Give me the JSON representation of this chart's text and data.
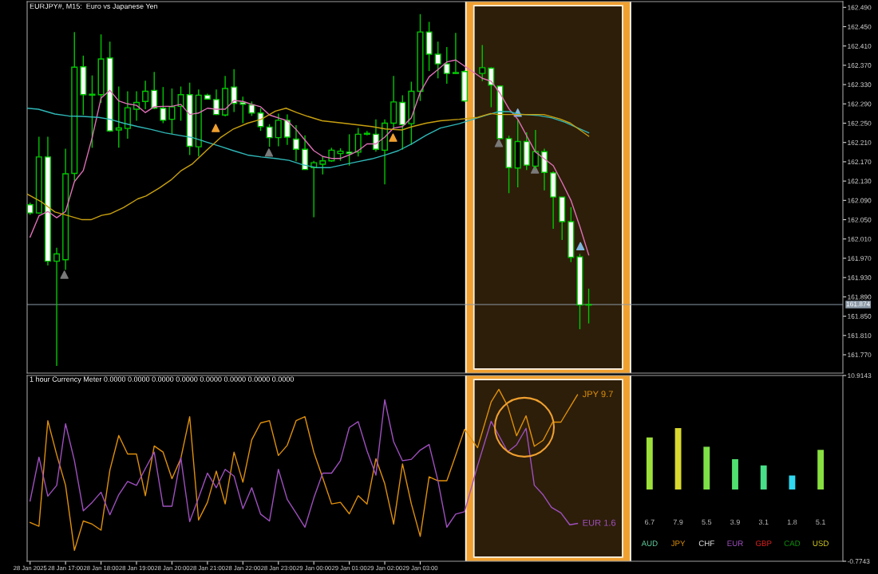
{
  "chart_data": [
    {
      "type": "candlestick",
      "title": "EURJPY#, M15:  Euro vs Japanese Yen",
      "x": [
        "2025-01-28T16:00",
        "2025-01-28T16:15",
        "2025-01-28T16:30",
        "2025-01-28T16:45",
        "2025-01-28T17:00",
        "2025-01-28T17:15",
        "2025-01-28T17:30",
        "2025-01-28T17:45",
        "2025-01-28T18:00",
        "2025-01-28T18:15",
        "2025-01-28T18:30",
        "2025-01-28T18:45",
        "2025-01-28T19:00",
        "2025-01-28T19:15",
        "2025-01-28T19:30",
        "2025-01-28T19:45",
        "2025-01-28T20:00",
        "2025-01-28T20:15",
        "2025-01-28T20:30",
        "2025-01-28T20:45",
        "2025-01-28T21:00",
        "2025-01-28T21:15",
        "2025-01-28T21:30",
        "2025-01-28T21:45",
        "2025-01-28T22:00",
        "2025-01-28T22:15",
        "2025-01-28T22:30",
        "2025-01-28T22:45",
        "2025-01-28T23:00",
        "2025-01-28T23:15",
        "2025-01-28T23:30",
        "2025-01-28T23:45",
        "2025-01-29T00:00",
        "2025-01-29T00:15",
        "2025-01-29T00:30",
        "2025-01-29T00:45",
        "2025-01-29T01:00",
        "2025-01-29T01:15",
        "2025-01-29T01:30",
        "2025-01-29T01:45",
        "2025-01-29T02:00",
        "2025-01-29T02:15",
        "2025-01-29T02:30",
        "2025-01-29T02:45",
        "2025-01-29T03:00",
        "2025-01-29T03:15",
        "2025-01-29T03:30",
        "2025-01-29T03:45",
        "2025-01-29T04:00",
        "2025-01-29T04:15",
        "2025-01-29T04:45",
        "2025-01-29T05:00",
        "2025-01-29T05:15",
        "2025-01-29T05:30",
        "2025-01-29T05:45",
        "2025-01-29T06:00",
        "2025-01-29T06:15",
        "2025-01-29T06:30",
        "2025-01-29T06:45",
        "2025-01-29T07:00",
        "2025-01-29T07:15",
        "2025-01-29T07:30",
        "2025-01-29T07:45"
      ],
      "ohlc": [
        [
          162.081,
          162.085,
          162.06,
          162.064
        ],
        [
          162.064,
          162.222,
          162.062,
          162.18
        ],
        [
          162.18,
          162.222,
          161.955,
          161.964
        ],
        [
          161.964,
          161.992,
          161.747,
          161.979
        ],
        [
          161.967,
          162.197,
          161.946,
          162.145
        ],
        [
          162.146,
          162.439,
          162.131,
          162.366
        ],
        [
          162.367,
          162.39,
          162.267,
          162.309
        ],
        [
          162.308,
          162.349,
          162.199,
          162.31
        ],
        [
          162.309,
          162.434,
          162.292,
          162.383
        ],
        [
          162.385,
          162.419,
          162.232,
          162.234
        ],
        [
          162.236,
          162.326,
          162.199,
          162.24
        ],
        [
          162.239,
          162.316,
          162.218,
          162.282
        ],
        [
          162.279,
          162.316,
          162.255,
          162.293
        ],
        [
          162.295,
          162.338,
          162.279,
          162.316
        ],
        [
          162.318,
          162.356,
          162.279,
          162.281
        ],
        [
          162.281,
          162.325,
          162.25,
          162.256
        ],
        [
          162.258,
          162.322,
          162.228,
          162.284
        ],
        [
          162.285,
          162.326,
          162.255,
          162.309
        ],
        [
          162.309,
          162.334,
          162.184,
          162.202
        ],
        [
          162.201,
          162.32,
          162.181,
          162.308
        ],
        [
          162.308,
          162.311,
          162.299,
          162.3
        ],
        [
          162.299,
          162.32,
          162.267,
          162.268
        ],
        [
          162.267,
          162.348,
          162.264,
          162.322
        ],
        [
          162.325,
          162.362,
          162.273,
          162.291
        ],
        [
          162.293,
          162.305,
          162.25,
          162.289
        ],
        [
          162.288,
          162.295,
          162.265,
          162.271
        ],
        [
          162.271,
          162.281,
          162.234,
          162.243
        ],
        [
          162.242,
          162.248,
          162.201,
          162.22
        ],
        [
          162.22,
          162.27,
          162.202,
          162.256
        ],
        [
          162.256,
          162.268,
          162.205,
          162.221
        ],
        [
          162.217,
          162.246,
          162.171,
          162.196
        ],
        [
          162.196,
          162.225,
          162.154,
          162.154
        ],
        [
          162.158,
          162.172,
          162.055,
          162.168
        ],
        [
          162.165,
          162.181,
          162.144,
          162.172
        ],
        [
          162.172,
          162.199,
          162.17,
          162.194
        ],
        [
          162.187,
          162.198,
          162.172,
          162.192
        ],
        [
          162.19,
          162.227,
          162.162,
          162.187
        ],
        [
          162.19,
          162.24,
          162.181,
          162.227
        ],
        [
          162.227,
          162.234,
          162.225,
          162.229
        ],
        [
          162.227,
          162.258,
          162.191,
          162.196
        ],
        [
          162.194,
          162.258,
          162.123,
          162.25
        ],
        [
          162.25,
          162.348,
          162.237,
          162.294
        ],
        [
          162.293,
          162.308,
          162.195,
          162.247
        ],
        [
          162.249,
          162.336,
          162.205,
          162.316
        ],
        [
          162.316,
          162.476,
          162.296,
          162.439
        ],
        [
          162.439,
          162.46,
          162.358,
          162.393
        ],
        [
          162.393,
          162.419,
          162.343,
          162.373
        ],
        [
          162.373,
          162.408,
          162.332,
          162.353
        ],
        [
          162.353,
          162.437,
          162.352,
          162.355
        ],
        [
          162.357,
          162.36,
          162.294,
          162.296
        ],
        [
          162.353,
          162.412,
          162.337,
          162.365
        ],
        [
          162.364,
          162.366,
          162.283,
          162.329
        ],
        [
          162.327,
          162.328,
          162.217,
          162.218
        ],
        [
          162.218,
          162.224,
          162.105,
          162.158
        ],
        [
          162.157,
          162.257,
          162.117,
          162.212
        ],
        [
          162.212,
          162.231,
          162.153,
          162.163
        ],
        [
          162.161,
          162.236,
          162.154,
          162.191
        ],
        [
          162.191,
          162.197,
          162.111,
          162.148
        ],
        [
          162.147,
          162.15,
          162.031,
          162.097
        ],
        [
          162.097,
          162.097,
          162.008,
          162.046
        ],
        [
          162.046,
          162.076,
          161.962,
          161.972
        ],
        [
          161.973,
          161.979,
          161.823,
          161.873
        ],
        [
          161.873,
          161.907,
          161.835,
          161.874
        ]
      ],
      "series": [
        {
          "type": "line",
          "color": "#e070b8",
          "x": [
            "2025-01-28T16:00",
            "2025-01-28T16:15",
            "2025-01-28T16:30",
            "2025-01-28T16:45",
            "2025-01-28T17:00",
            "2025-01-28T17:15",
            "2025-01-28T17:30",
            "2025-01-28T17:45",
            "2025-01-28T18:00",
            "2025-01-28T18:15",
            "2025-01-28T18:30",
            "2025-01-28T18:45",
            "2025-01-28T19:00",
            "2025-01-28T19:15",
            "2025-01-28T19:30",
            "2025-01-28T19:45",
            "2025-01-28T20:00",
            "2025-01-28T20:15",
            "2025-01-28T20:30",
            "2025-01-28T20:45",
            "2025-01-28T21:00",
            "2025-01-28T21:15",
            "2025-01-28T21:30",
            "2025-01-28T21:45",
            "2025-01-28T22:00",
            "2025-01-28T22:15",
            "2025-01-28T22:30",
            "2025-01-28T22:45",
            "2025-01-28T23:00",
            "2025-01-28T23:15",
            "2025-01-28T23:30",
            "2025-01-28T23:45",
            "2025-01-29T00:00",
            "2025-01-29T00:15",
            "2025-01-29T00:30",
            "2025-01-29T00:45",
            "2025-01-29T01:00",
            "2025-01-29T01:15",
            "2025-01-29T01:30",
            "2025-01-29T01:45",
            "2025-01-29T02:00",
            "2025-01-29T02:15",
            "2025-01-29T02:30",
            "2025-01-29T02:45",
            "2025-01-29T03:00",
            "2025-01-29T03:15",
            "2025-01-29T03:30",
            "2025-01-29T03:45",
            "2025-01-29T04:00",
            "2025-01-29T04:45",
            "2025-01-29T05:00",
            "2025-01-29T05:15",
            "2025-01-29T05:30",
            "2025-01-29T05:45",
            "2025-01-29T06:00",
            "2025-01-29T06:15",
            "2025-01-29T06:30",
            "2025-01-29T06:45",
            "2025-01-29T07:00",
            "2025-01-29T07:15",
            "2025-01-29T07:30",
            "2025-01-29T07:45"
          ],
          "values": [
            162.014,
            162.058,
            162.067,
            162.054,
            162.067,
            162.129,
            162.152,
            162.22,
            162.302,
            162.318,
            162.296,
            162.29,
            162.287,
            162.272,
            162.284,
            162.285,
            162.285,
            162.289,
            162.268,
            162.271,
            162.281,
            162.279,
            162.279,
            162.297,
            162.295,
            162.289,
            162.284,
            162.267,
            162.261,
            162.255,
            162.237,
            162.215,
            162.193,
            162.181,
            162.177,
            162.177,
            162.184,
            162.193,
            162.207,
            162.207,
            162.221,
            162.24,
            162.243,
            162.261,
            162.314,
            162.346,
            162.361,
            162.377,
            162.381,
            162.343,
            162.337,
            162.312,
            162.28,
            162.258,
            162.224,
            162.19,
            162.176,
            162.162,
            162.127,
            162.09,
            162.036,
            161.977
          ]
        },
        {
          "type": "line",
          "color": "#30b8b8",
          "x": [
            "2025-01-28T15:55",
            "2025-01-28T16:14",
            "2025-01-28T16:42",
            "2025-01-28T17:05",
            "2025-01-28T17:28",
            "2025-01-28T17:56",
            "2025-01-28T18:15",
            "2025-01-28T18:38",
            "2025-01-28T19:02",
            "2025-01-28T19:25",
            "2025-01-28T19:48",
            "2025-01-28T20:11",
            "2025-01-28T20:35",
            "2025-01-28T20:58",
            "2025-01-28T21:22",
            "2025-01-28T21:44",
            "2025-01-28T22:08",
            "2025-01-28T22:31",
            "2025-01-28T22:55",
            "2025-01-28T23:18",
            "2025-01-28T23:41",
            "2025-01-29T00:04",
            "2025-01-29T00:28",
            "2025-01-29T00:50",
            "2025-01-29T01:14",
            "2025-01-29T01:38",
            "2025-01-29T02:01",
            "2025-01-29T02:23",
            "2025-01-29T02:47",
            "2025-01-29T03:10",
            "2025-01-29T03:34",
            "2025-01-29T04:06",
            "2025-01-29T04:37",
            "2025-01-29T04:50",
            "2025-01-29T05:13",
            "2025-01-29T05:31",
            "2025-01-29T05:44",
            "2025-01-29T06:20",
            "2025-01-29T06:43",
            "2025-01-29T07:05",
            "2025-01-29T07:45"
          ],
          "values": [
            162.281,
            162.279,
            162.269,
            162.265,
            162.264,
            162.262,
            162.258,
            162.25,
            162.243,
            162.237,
            162.23,
            162.225,
            162.22,
            162.211,
            162.202,
            162.193,
            162.184,
            162.18,
            162.177,
            162.173,
            162.164,
            162.158,
            162.158,
            162.164,
            162.17,
            162.176,
            162.184,
            162.193,
            162.208,
            162.225,
            162.24,
            162.249,
            162.261,
            162.266,
            162.274,
            162.274,
            162.269,
            162.266,
            162.261,
            162.252,
            162.23
          ]
        },
        {
          "type": "line",
          "color": "#c8a010",
          "x": [
            "2025-01-28T15:55",
            "2025-01-28T16:19",
            "2025-01-28T16:42",
            "2025-01-28T17:05",
            "2025-01-28T17:28",
            "2025-01-28T17:43",
            "2025-01-28T18:01",
            "2025-01-28T18:15",
            "2025-01-28T18:38",
            "2025-01-28T19:02",
            "2025-01-28T19:16",
            "2025-01-28T19:39",
            "2025-01-28T19:58",
            "2025-01-28T20:16",
            "2025-01-28T20:35",
            "2025-01-28T20:58",
            "2025-01-28T21:22",
            "2025-01-28T21:44",
            "2025-01-28T22:08",
            "2025-01-28T22:31",
            "2025-01-28T22:55",
            "2025-01-28T23:13",
            "2025-01-28T23:31",
            "2025-01-28T23:50",
            "2025-01-29T00:14",
            "2025-01-29T00:50",
            "2025-01-29T01:38",
            "2025-01-29T02:01",
            "2025-01-29T02:29",
            "2025-01-29T02:47",
            "2025-01-29T03:10",
            "2025-01-29T03:34",
            "2025-01-29T04:06",
            "2025-01-29T04:37",
            "2025-01-29T04:59",
            "2025-01-29T05:13",
            "2025-01-29T05:58",
            "2025-01-29T06:29",
            "2025-01-29T06:56",
            "2025-01-29T07:14",
            "2025-01-29T07:45"
          ],
          "values": [
            162.103,
            162.087,
            162.066,
            162.058,
            162.05,
            162.05,
            162.059,
            162.062,
            162.075,
            162.093,
            162.099,
            162.116,
            162.132,
            162.152,
            162.166,
            162.193,
            162.22,
            162.238,
            162.25,
            162.258,
            162.275,
            162.281,
            162.272,
            162.264,
            162.255,
            162.25,
            162.243,
            162.238,
            162.236,
            162.243,
            162.25,
            162.255,
            162.258,
            162.262,
            162.27,
            162.268,
            162.268,
            162.268,
            162.259,
            162.25,
            162.223
          ]
        },
        {
          "type": "scatter",
          "color": "#7a7a7a",
          "marker": "triangle",
          "x": [
            "2025-01-28T16:58",
            "2025-01-28T22:44",
            "2025-01-29T05:13",
            "2025-01-29T06:14"
          ],
          "values": [
            161.936,
            162.189,
            162.209,
            162.154
          ]
        },
        {
          "type": "scatter",
          "color": "#f0a030",
          "marker": "triangle",
          "x": [
            "2025-01-28T21:14",
            "2025-01-29T02:14"
          ],
          "values": [
            162.24,
            162.22
          ]
        },
        {
          "type": "scatter",
          "color": "#80b8e0",
          "marker": "triangle",
          "x": [
            "2025-01-29T05:45",
            "2025-01-29T07:31"
          ],
          "values": [
            162.272,
            161.995
          ]
        }
      ],
      "xlim": [
        "2025-01-28T15:55",
        "2025-01-29T14:55"
      ],
      "ylim": [
        161.732,
        162.502
      ],
      "yticks": [
        {
          "value": 161.77,
          "label": "161.770"
        },
        {
          "value": 161.81,
          "label": "161.810"
        },
        {
          "value": 161.85,
          "label": "161.850"
        },
        {
          "value": 161.89,
          "label": "161.890"
        },
        {
          "value": 161.93,
          "label": "161.930"
        },
        {
          "value": 161.97,
          "label": "161.970"
        },
        {
          "value": 162.01,
          "label": "162.010"
        },
        {
          "value": 162.05,
          "label": "162.050"
        },
        {
          "value": 162.09,
          "label": "162.090"
        },
        {
          "value": 162.13,
          "label": "162.130"
        },
        {
          "value": 162.17,
          "label": "162.170"
        },
        {
          "value": 162.21,
          "label": "162.210"
        },
        {
          "value": 162.25,
          "label": "162.250"
        },
        {
          "value": 162.29,
          "label": "162.290"
        },
        {
          "value": 162.33,
          "label": "162.330"
        },
        {
          "value": 162.37,
          "label": "162.370"
        },
        {
          "value": 162.41,
          "label": "162.410"
        },
        {
          "value": 162.45,
          "label": "162.450"
        },
        {
          "value": 162.49,
          "label": "162.490"
        }
      ],
      "ref_lines": [
        {
          "axis": "y",
          "value": 161.874,
          "label": "161.874",
          "color": "#8c9aa8"
        }
      ],
      "bands": [
        {
          "axis": "x",
          "from": "2025-01-29T04:24",
          "to": "2025-01-29T08:49",
          "color": "#f0a030"
        }
      ],
      "tick_labels": "y",
      "grid": false,
      "legend": false
    },
    {
      "type": "line",
      "title": "1 hour Currency Meter 0.0000 0.0000 0.0000 0.0000 0.0000 0.0000 0.0000 0.0000",
      "series": [
        {
          "name": "JPY 9.7",
          "color": "#e0900a",
          "x": [
            "2025-01-28T16:00",
            "2025-01-28T16:15",
            "2025-01-28T16:30",
            "2025-01-28T16:45",
            "2025-01-28T17:00",
            "2025-01-28T17:15",
            "2025-01-28T17:30",
            "2025-01-28T17:45",
            "2025-01-28T18:00",
            "2025-01-28T18:15",
            "2025-01-28T18:30",
            "2025-01-28T18:45",
            "2025-01-28T19:00",
            "2025-01-28T19:15",
            "2025-01-28T19:30",
            "2025-01-28T19:45",
            "2025-01-28T20:00",
            "2025-01-28T20:15",
            "2025-01-28T20:30",
            "2025-01-28T20:45",
            "2025-01-28T21:00",
            "2025-01-28T21:15",
            "2025-01-28T21:30",
            "2025-01-28T21:45",
            "2025-01-28T22:00",
            "2025-01-28T22:15",
            "2025-01-28T22:30",
            "2025-01-28T22:45",
            "2025-01-28T23:00",
            "2025-01-28T23:15",
            "2025-01-28T23:30",
            "2025-01-28T23:45",
            "2025-01-29T00:00",
            "2025-01-29T00:15",
            "2025-01-29T00:30",
            "2025-01-29T00:45",
            "2025-01-29T01:00",
            "2025-01-29T01:15",
            "2025-01-29T01:30",
            "2025-01-29T01:45",
            "2025-01-29T02:00",
            "2025-01-29T02:15",
            "2025-01-29T02:30",
            "2025-01-29T02:45",
            "2025-01-29T03:00",
            "2025-01-29T03:15",
            "2025-01-29T03:30",
            "2025-01-29T03:45",
            "2025-01-29T04:00",
            "2025-01-29T04:15",
            "2025-01-29T04:37",
            "2025-01-29T05:00",
            "2025-01-29T05:13",
            "2025-01-29T05:28",
            "2025-01-29T05:43",
            "2025-01-29T05:59",
            "2025-01-29T06:13",
            "2025-01-29T06:28",
            "2025-01-29T06:44",
            "2025-01-29T06:58",
            "2025-01-29T07:26"
          ],
          "values": [
            1.66,
            1.43,
            8.07,
            5.93,
            4.0,
            -0.09,
            1.76,
            1.56,
            1.18,
            4.96,
            7.14,
            5.97,
            5.97,
            3.35,
            6.48,
            6.09,
            4.42,
            5.7,
            8.32,
            1.82,
            2.93,
            4.9,
            2.83,
            6.09,
            4.2,
            6.87,
            7.93,
            8.07,
            5.88,
            6.52,
            8.07,
            8.32,
            6.09,
            4.48,
            2.83,
            2.93,
            2.21,
            3.35,
            2.83,
            5.68,
            4.1,
            1.56,
            5.35,
            2.83,
            0.79,
            4.54,
            4.29,
            4.29,
            5.9,
            7.53,
            6.37,
            9.25,
            10.04,
            8.99,
            7.12,
            8.38,
            6.46,
            6.84,
            7.98,
            7.98,
            9.7
          ]
        },
        {
          "name": "EUR 1.6",
          "color": "#a050c0",
          "x": [
            "2025-01-28T16:00",
            "2025-01-28T16:15",
            "2025-01-28T16:30",
            "2025-01-28T16:45",
            "2025-01-28T17:00",
            "2025-01-28T17:15",
            "2025-01-28T17:30",
            "2025-01-28T17:45",
            "2025-01-28T18:00",
            "2025-01-28T18:15",
            "2025-01-28T18:30",
            "2025-01-28T18:45",
            "2025-01-28T19:00",
            "2025-01-28T19:15",
            "2025-01-28T19:30",
            "2025-01-28T19:45",
            "2025-01-28T20:00",
            "2025-01-28T20:15",
            "2025-01-28T20:30",
            "2025-01-28T20:45",
            "2025-01-28T21:00",
            "2025-01-28T21:15",
            "2025-01-28T21:30",
            "2025-01-28T21:45",
            "2025-01-28T22:00",
            "2025-01-28T22:15",
            "2025-01-28T22:30",
            "2025-01-28T22:45",
            "2025-01-28T23:00",
            "2025-01-28T23:15",
            "2025-01-28T23:30",
            "2025-01-28T23:45",
            "2025-01-29T00:00",
            "2025-01-29T00:15",
            "2025-01-29T00:30",
            "2025-01-29T00:45",
            "2025-01-29T01:00",
            "2025-01-29T01:15",
            "2025-01-29T01:30",
            "2025-01-29T01:45",
            "2025-01-29T02:00",
            "2025-01-29T02:15",
            "2025-01-29T02:30",
            "2025-01-29T02:45",
            "2025-01-29T03:00",
            "2025-01-29T03:15",
            "2025-01-29T03:30",
            "2025-01-29T03:45",
            "2025-01-29T04:00",
            "2025-01-29T04:15",
            "2025-01-29T04:37",
            "2025-01-29T05:00",
            "2025-01-29T05:28",
            "2025-01-29T05:43",
            "2025-01-29T05:59",
            "2025-01-29T06:13",
            "2025-01-29T06:28",
            "2025-01-29T06:42",
            "2025-01-29T06:58",
            "2025-01-29T07:13",
            "2025-01-29T07:26"
          ],
          "values": [
            3.02,
            5.78,
            3.32,
            4.0,
            7.88,
            5.55,
            2.4,
            2.93,
            3.57,
            2.15,
            3.41,
            4.25,
            4.0,
            5.06,
            6.09,
            2.69,
            2.69,
            5.74,
            1.72,
            3.21,
            4.77,
            3.85,
            5.01,
            4.58,
            2.54,
            3.85,
            2.19,
            1.76,
            5.01,
            3.12,
            2.25,
            1.37,
            3.21,
            4.77,
            4.77,
            5.55,
            7.64,
            8.01,
            6.17,
            4.64,
            9.39,
            6.75,
            5.55,
            5.64,
            6.22,
            6.57,
            4.29,
            1.37,
            2.19,
            2.34,
            5.24,
            8.03,
            6.11,
            6.55,
            7.59,
            4.01,
            3.4,
            2.62,
            2.27,
            1.52,
            1.6
          ]
        }
      ],
      "xlim": [
        "2025-01-28T15:55",
        "2025-01-29T14:55"
      ],
      "ylim": [
        -0.7743,
        10.9143
      ],
      "xticks": [
        {
          "value": "2025-01-28T16:00",
          "label": "28 Jan 2025"
        },
        {
          "value": "2025-01-28T17:00",
          "label": "28 Jan 17:00"
        },
        {
          "value": "2025-01-28T18:00",
          "label": "28 Jan 18:00"
        },
        {
          "value": "2025-01-28T19:00",
          "label": "28 Jan 19:00"
        },
        {
          "value": "2025-01-28T20:00",
          "label": "28 Jan 20:00"
        },
        {
          "value": "2025-01-28T21:00",
          "label": "28 Jan 21:00"
        },
        {
          "value": "2025-01-28T22:00",
          "label": "28 Jan 22:00"
        },
        {
          "value": "2025-01-28T23:00",
          "label": "28 Jan 23:00"
        },
        {
          "value": "2025-01-29T00:00",
          "label": "29 Jan 00:00"
        },
        {
          "value": "2025-01-29T01:00",
          "label": "29 Jan 01:00"
        },
        {
          "value": "2025-01-29T02:00",
          "label": "29 Jan 02:00"
        },
        {
          "value": "2025-01-29T03:00",
          "label": "29 Jan 03:00"
        }
      ],
      "yticks": [
        -0.7743,
        10.9143
      ],
      "bands": [
        {
          "axis": "x",
          "from": "2025-01-29T04:24",
          "to": "2025-01-29T08:49",
          "color": "#f0a030"
        }
      ],
      "grid": false,
      "legend": false
    },
    {
      "type": "bar",
      "categories": [
        "AUD",
        "JPY",
        "CHF",
        "EUR",
        "GBP",
        "CAD",
        "USD"
      ],
      "values": [
        6.7,
        7.9,
        5.5,
        3.9,
        3.1,
        1.8,
        5.1
      ],
      "colors": [
        "#9ee03a",
        "#d8d830",
        "#7ee048",
        "#50e070",
        "#48e088",
        "#30d8f0",
        "#88e040"
      ],
      "data_labels": true,
      "tick_labels": "x",
      "grid": false,
      "legend": false
    }
  ]
}
